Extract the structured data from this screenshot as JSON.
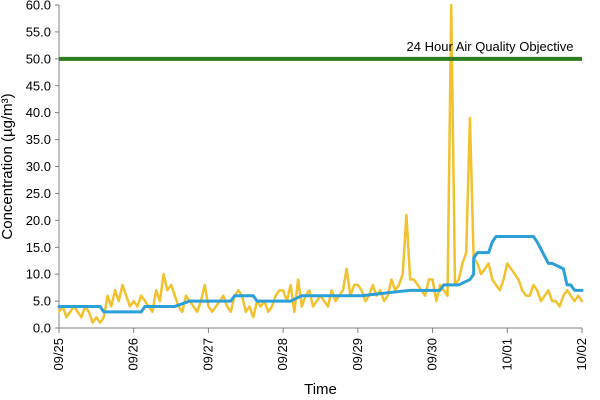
{
  "chart_data": {
    "type": "line",
    "title": "",
    "xlabel": "Time",
    "ylabel": "Concentration (µg/m³)",
    "ylim": [
      0,
      60
    ],
    "xlim": [
      "09/25",
      "10/02"
    ],
    "grid": false,
    "legend": "none",
    "y_ticks": [
      "0.0",
      "5.0",
      "10.0",
      "15.0",
      "20.0",
      "25.0",
      "30.0",
      "35.0",
      "40.0",
      "45.0",
      "50.0",
      "55.0",
      "60.0"
    ],
    "x_ticks": [
      "09/25",
      "09/26",
      "09/27",
      "09/28",
      "09/29",
      "09/30",
      "10/01",
      "10/02"
    ],
    "objective": {
      "label": "24 Hour Air Quality Objective",
      "value": 50,
      "color": "#2e7d1e"
    },
    "series": [
      {
        "color": "#f2c12e",
        "x": [
          0.0,
          0.05,
          0.1,
          0.15,
          0.2,
          0.25,
          0.3,
          0.35,
          0.4,
          0.45,
          0.5,
          0.55,
          0.6,
          0.65,
          0.7,
          0.75,
          0.8,
          0.85,
          0.9,
          0.95,
          1.0,
          1.05,
          1.1,
          1.15,
          1.2,
          1.25,
          1.3,
          1.35,
          1.4,
          1.45,
          1.5,
          1.55,
          1.6,
          1.65,
          1.7,
          1.75,
          1.8,
          1.85,
          1.9,
          1.95,
          2.0,
          2.05,
          2.1,
          2.15,
          2.2,
          2.25,
          2.3,
          2.35,
          2.4,
          2.45,
          2.5,
          2.55,
          2.6,
          2.65,
          2.7,
          2.75,
          2.8,
          2.85,
          2.9,
          2.95,
          3.0,
          3.05,
          3.1,
          3.15,
          3.2,
          3.25,
          3.3,
          3.35,
          3.4,
          3.45,
          3.5,
          3.55,
          3.6,
          3.65,
          3.7,
          3.75,
          3.8,
          3.85,
          3.9,
          3.95,
          4.0,
          4.05,
          4.1,
          4.15,
          4.2,
          4.25,
          4.3,
          4.35,
          4.4,
          4.45,
          4.5,
          4.55,
          4.6,
          4.65,
          4.7,
          4.75,
          4.8,
          4.85,
          4.9,
          4.95,
          5.0,
          5.05,
          5.1,
          5.15,
          5.2,
          5.25,
          5.3,
          5.35,
          5.4,
          5.45,
          5.5,
          5.55,
          5.6,
          5.65,
          5.7,
          5.75,
          5.8,
          5.85,
          5.9,
          5.95,
          6.0,
          6.05,
          6.1,
          6.15,
          6.2,
          6.25,
          6.3,
          6.35,
          6.4,
          6.45,
          6.5,
          6.55,
          6.6,
          6.65,
          6.7,
          6.75,
          6.8,
          6.85,
          6.9,
          6.95,
          7.0
        ],
        "y": [
          3,
          4,
          2,
          3,
          4,
          3,
          2,
          4,
          3,
          1,
          2,
          1,
          2,
          6,
          4,
          7,
          5,
          8,
          6,
          4,
          5,
          4,
          6,
          5,
          4,
          3,
          7,
          5,
          10,
          7,
          8,
          6,
          4,
          3,
          6,
          5,
          4,
          3,
          5,
          8,
          4,
          3,
          4,
          5,
          6,
          4,
          3,
          6,
          7,
          6,
          3,
          4,
          2,
          5,
          4,
          5,
          3,
          4,
          6,
          7,
          7,
          5,
          8,
          3,
          9,
          4,
          6,
          7,
          4,
          5,
          6,
          5,
          4,
          7,
          5,
          6,
          7,
          11,
          6,
          8,
          8,
          7,
          5,
          6,
          8,
          6,
          7,
          5,
          6,
          9,
          7,
          8,
          10,
          21,
          9,
          9,
          8,
          7,
          6,
          9,
          9,
          5,
          8,
          7,
          6,
          62,
          8,
          9,
          12,
          14,
          39,
          13,
          12,
          10,
          11,
          12,
          9,
          8,
          7,
          9,
          12,
          11,
          10,
          9,
          7,
          6,
          6,
          8,
          7,
          5,
          6,
          7,
          5,
          5,
          4,
          6,
          7,
          6,
          5,
          6,
          5
        ]
      },
      {
        "color": "#2a9fd8",
        "x": [
          0.0,
          0.3,
          0.55,
          0.6,
          1.1,
          1.15,
          1.5,
          1.55,
          1.75,
          1.8,
          2.1,
          2.15,
          2.3,
          2.35,
          2.6,
          2.65,
          3.05,
          3.1,
          3.25,
          3.3,
          3.7,
          3.75,
          4.0,
          4.05,
          4.7,
          4.75,
          5.1,
          5.15,
          5.3,
          5.35,
          5.5,
          5.55,
          5.55,
          5.6,
          5.75,
          5.8,
          5.85,
          6.15,
          6.35,
          6.4,
          6.55,
          6.6,
          6.75,
          6.8,
          6.85,
          6.9,
          7.0
        ],
        "y": [
          4,
          4,
          4,
          3,
          3,
          4,
          4,
          4,
          5,
          5,
          5,
          5,
          5,
          6,
          6,
          5,
          5,
          5,
          6,
          6,
          6,
          6,
          6,
          6,
          7,
          7,
          7,
          8,
          8,
          8,
          9,
          10,
          13,
          14,
          14,
          16,
          17,
          17,
          17,
          16,
          12,
          12,
          11,
          8,
          8,
          7,
          7
        ]
      }
    ]
  }
}
